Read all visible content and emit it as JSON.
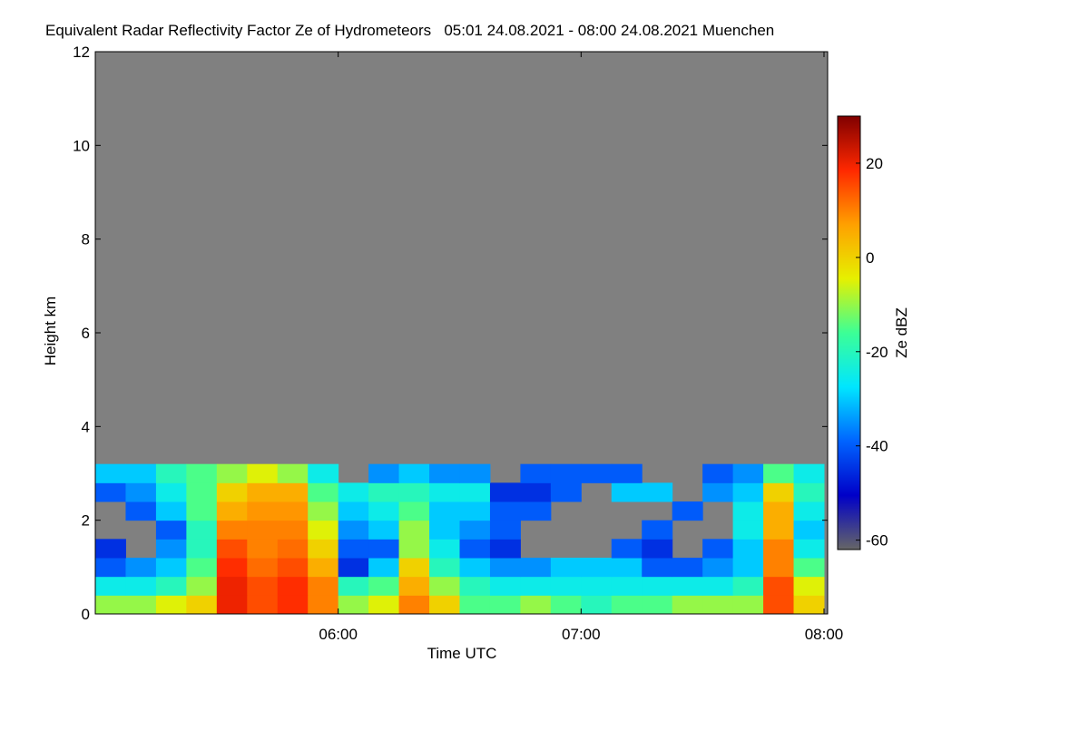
{
  "chart_data": {
    "type": "heatmap",
    "title": "Equivalent Radar Reflectivity Factor Ze of Hydrometeors   05:01 24.08.2021 - 08:00 24.08.2021 Muenchen",
    "xlabel": "Time UTC",
    "ylabel": "Height km",
    "colorbar_label": "Ze dBZ",
    "xlim": [
      5.0,
      8.015
    ],
    "ylim": [
      0,
      12
    ],
    "xticks": [
      {
        "value": 6,
        "label": "06:00"
      },
      {
        "value": 7,
        "label": "07:00"
      },
      {
        "value": 8,
        "label": "08:00"
      }
    ],
    "yticks": [
      0,
      2,
      4,
      6,
      8,
      10,
      12
    ],
    "colorlim": [
      -62,
      30
    ],
    "colorticks": [
      -60,
      -40,
      -20,
      0,
      20
    ],
    "colormap": [
      "#666666",
      "#0000c8",
      "#0064ff",
      "#00e6ff",
      "#3cff96",
      "#e6f000",
      "#ffa000",
      "#ff2800",
      "#800000"
    ],
    "background": "#808080",
    "x_edges": [
      5.0,
      5.125,
      5.25,
      5.375,
      5.5,
      5.625,
      5.75,
      5.875,
      6.0,
      6.125,
      6.25,
      6.375,
      6.5,
      6.625,
      6.75,
      6.875,
      7.0,
      7.125,
      7.25,
      7.375,
      7.5,
      7.625,
      7.75,
      7.875,
      8.0
    ],
    "y_edges": [
      0,
      0.4,
      0.8,
      1.2,
      1.6,
      2.0,
      2.4,
      2.8,
      3.2
    ],
    "z": [
      [
        -10,
        -10,
        -5,
        0,
        20,
        15,
        18,
        10,
        -10,
        -5,
        10,
        0,
        -15,
        -15,
        -10,
        -15,
        -20,
        -15,
        -15,
        -10,
        -10,
        -10,
        15,
        0
      ],
      [
        -25,
        -25,
        -20,
        -10,
        20,
        15,
        18,
        10,
        -20,
        -15,
        5,
        -10,
        -20,
        -25,
        -25,
        -25,
        -25,
        -25,
        -25,
        -25,
        -25,
        -20,
        15,
        -5
      ],
      [
        -40,
        -35,
        -30,
        -15,
        18,
        12,
        15,
        5,
        -45,
        -30,
        0,
        -20,
        -30,
        -35,
        -35,
        -30,
        -30,
        -30,
        -40,
        -40,
        -35,
        -30,
        10,
        -15
      ],
      [
        -45,
        null,
        -35,
        -20,
        15,
        10,
        12,
        0,
        -40,
        -40,
        -10,
        -25,
        -40,
        -45,
        null,
        null,
        null,
        -40,
        -45,
        null,
        -40,
        -30,
        10,
        -25
      ],
      [
        null,
        null,
        -40,
        -20,
        10,
        10,
        10,
        -5,
        -35,
        -30,
        -10,
        -30,
        -35,
        -40,
        null,
        null,
        null,
        null,
        -40,
        null,
        null,
        -25,
        5,
        -30
      ],
      [
        null,
        -40,
        -30,
        -15,
        5,
        8,
        8,
        -10,
        -30,
        -25,
        -15,
        -30,
        -30,
        -40,
        -40,
        null,
        null,
        null,
        null,
        -40,
        null,
        -25,
        5,
        -25
      ],
      [
        -40,
        -35,
        -25,
        -15,
        0,
        5,
        5,
        -15,
        -25,
        -20,
        -20,
        -25,
        -25,
        -45,
        -45,
        -40,
        null,
        -30,
        -30,
        null,
        -35,
        -30,
        0,
        -20
      ],
      [
        -30,
        -30,
        -20,
        -15,
        -10,
        -5,
        -10,
        -25,
        null,
        -35,
        -30,
        -35,
        -35,
        null,
        -40,
        -40,
        -40,
        -40,
        null,
        null,
        -40,
        -35,
        -15,
        -25
      ]
    ]
  }
}
